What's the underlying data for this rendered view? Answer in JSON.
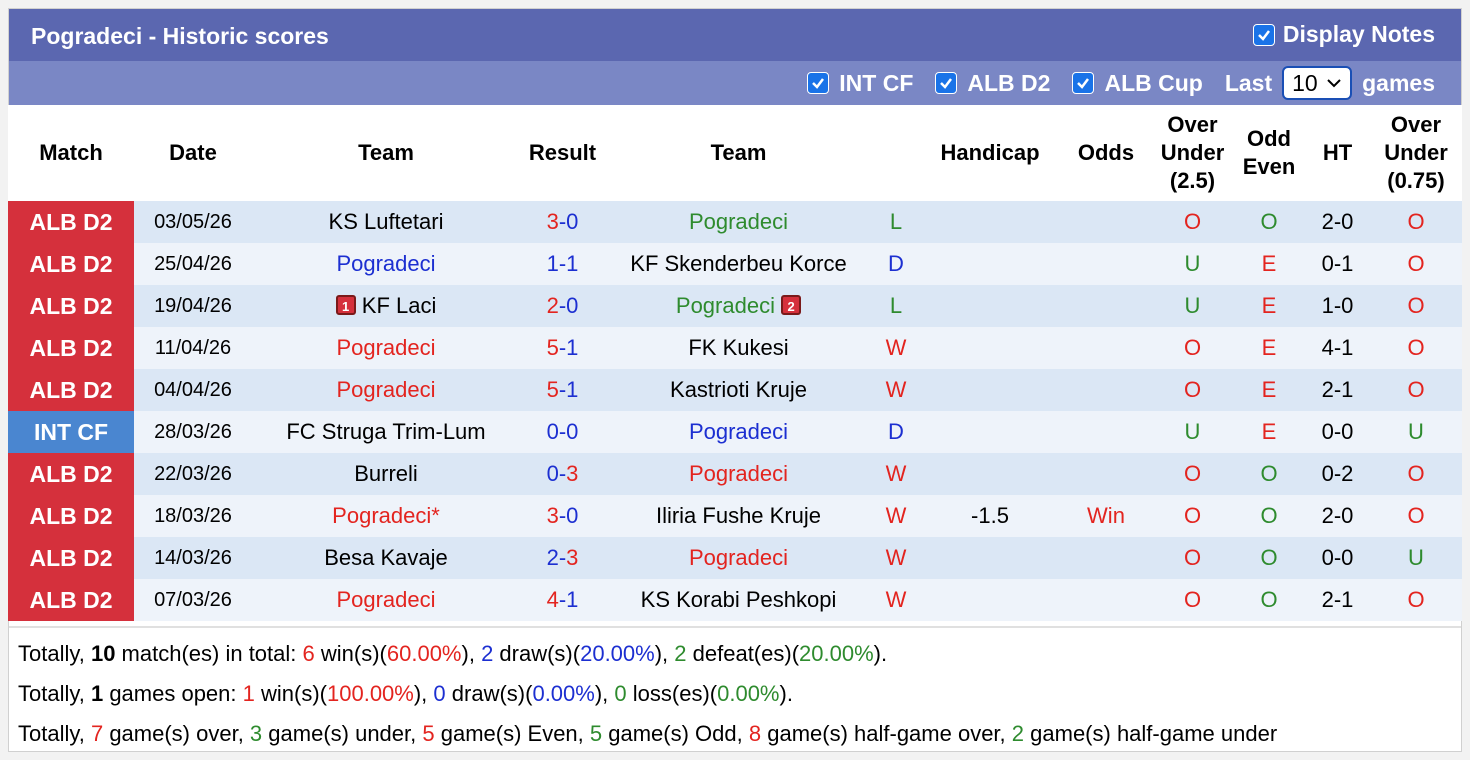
{
  "header": {
    "title": "Pogradeci - Historic scores",
    "display_notes": "Display Notes"
  },
  "filters": {
    "options": [
      "INT CF",
      "ALB D2",
      "ALB Cup"
    ],
    "last_label": "Last",
    "last_value": "10",
    "games_label": "games"
  },
  "colors": {
    "match": {
      "ALB D2": "#d5303c",
      "INT CF": "#4a86d0"
    },
    "outcome": {
      "W": "#e3241f",
      "D": "#1c2fd1",
      "L": "#2e8b2e"
    },
    "ou": {
      "O": "#e3241f",
      "U": "#2e8b2e"
    },
    "oe": {
      "O": "#2e8b2e",
      "E": "#e3241f"
    },
    "odds": {
      "Win": "#e3241f"
    },
    "text": {
      "r": "#e3241f",
      "b": "#1c2fd1",
      "g": "#2e8b2e",
      "k": "#000000"
    }
  },
  "table": {
    "columns": [
      "Match",
      "Date",
      "Team",
      "Result",
      "Team",
      null,
      "Handicap",
      "Odds",
      "Over Under (2.5)",
      "Odd Even",
      "HT",
      "Over Under (0.75)"
    ],
    "score_sep": "-",
    "rows": [
      {
        "match": "ALB D2",
        "date": "03/05/26",
        "home": "KS Luftetari",
        "score": [
          3,
          0
        ],
        "away": "Pogradeci",
        "focus": "away",
        "outcome": "L",
        "handicap": null,
        "odds": null,
        "ou": "O",
        "oe": "O",
        "ht": "2-0",
        "ou2": "O"
      },
      {
        "match": "ALB D2",
        "date": "25/04/26",
        "home": "Pogradeci",
        "score": [
          1,
          1
        ],
        "away": "KF Skenderbeu Korce",
        "focus": "home",
        "outcome": "D",
        "handicap": null,
        "odds": null,
        "ou": "U",
        "oe": "E",
        "ht": "0-1",
        "ou2": "O"
      },
      {
        "match": "ALB D2",
        "date": "19/04/26",
        "home": "KF Laci",
        "home_cards": 1,
        "score": [
          2,
          0
        ],
        "away": "Pogradeci",
        "away_cards": 2,
        "focus": "away",
        "outcome": "L",
        "handicap": null,
        "odds": null,
        "ou": "U",
        "oe": "E",
        "ht": "1-0",
        "ou2": "O"
      },
      {
        "match": "ALB D2",
        "date": "11/04/26",
        "home": "Pogradeci",
        "score": [
          5,
          1
        ],
        "away": "FK Kukesi",
        "focus": "home",
        "outcome": "W",
        "handicap": null,
        "odds": null,
        "ou": "O",
        "oe": "E",
        "ht": "4-1",
        "ou2": "O"
      },
      {
        "match": "ALB D2",
        "date": "04/04/26",
        "home": "Pogradeci",
        "score": [
          5,
          1
        ],
        "away": "Kastrioti Kruje",
        "focus": "home",
        "outcome": "W",
        "handicap": null,
        "odds": null,
        "ou": "O",
        "oe": "E",
        "ht": "2-1",
        "ou2": "O"
      },
      {
        "match": "INT CF",
        "date": "28/03/26",
        "home": "FC Struga Trim-Lum",
        "score": [
          0,
          0
        ],
        "away": "Pogradeci",
        "focus": "away",
        "outcome": "D",
        "handicap": null,
        "odds": null,
        "ou": "U",
        "oe": "E",
        "ht": "0-0",
        "ou2": "U"
      },
      {
        "match": "ALB D2",
        "date": "22/03/26",
        "home": "Burreli",
        "score": [
          0,
          3
        ],
        "away": "Pogradeci",
        "focus": "away",
        "outcome": "W",
        "handicap": null,
        "odds": null,
        "ou": "O",
        "oe": "O",
        "ht": "0-2",
        "ou2": "O"
      },
      {
        "match": "ALB D2",
        "date": "18/03/26",
        "home": "Pogradeci*",
        "score": [
          3,
          0
        ],
        "away": "Iliria Fushe Kruje",
        "focus": "home",
        "outcome": "W",
        "handicap": -1.5,
        "odds": "Win",
        "ou": "O",
        "oe": "O",
        "ht": "2-0",
        "ou2": "O"
      },
      {
        "match": "ALB D2",
        "date": "14/03/26",
        "home": "Besa Kavaje",
        "score": [
          2,
          3
        ],
        "away": "Pogradeci",
        "focus": "away",
        "outcome": "W",
        "handicap": null,
        "odds": null,
        "ou": "O",
        "oe": "O",
        "ht": "0-0",
        "ou2": "U"
      },
      {
        "match": "ALB D2",
        "date": "07/03/26",
        "home": "Pogradeci",
        "score": [
          4,
          1
        ],
        "away": "KS Korabi Peshkopi",
        "focus": "home",
        "outcome": "W",
        "handicap": null,
        "odds": null,
        "ou": "O",
        "oe": "O",
        "ht": "2-1",
        "ou2": "O"
      }
    ]
  },
  "summary": [
    [
      {
        "t": "Totally, "
      },
      {
        "t": "10",
        "c": "k"
      },
      {
        "t": " match(es) in total: "
      },
      {
        "t": "6",
        "c": "r"
      },
      {
        "t": " win(s)("
      },
      {
        "t": "60.00%",
        "c": "r"
      },
      {
        "t": "), "
      },
      {
        "t": "2",
        "c": "b"
      },
      {
        "t": " draw(s)("
      },
      {
        "t": "20.00%",
        "c": "b"
      },
      {
        "t": "), "
      },
      {
        "t": "2",
        "c": "g"
      },
      {
        "t": " defeat(es)("
      },
      {
        "t": "20.00%",
        "c": "g"
      },
      {
        "t": ")."
      }
    ],
    [
      {
        "t": "Totally, "
      },
      {
        "t": "1",
        "c": "k"
      },
      {
        "t": " games open: "
      },
      {
        "t": "1",
        "c": "r"
      },
      {
        "t": " win(s)("
      },
      {
        "t": "100.00%",
        "c": "r"
      },
      {
        "t": "), "
      },
      {
        "t": "0",
        "c": "b"
      },
      {
        "t": " draw(s)("
      },
      {
        "t": "0.00%",
        "c": "b"
      },
      {
        "t": "), "
      },
      {
        "t": "0",
        "c": "g"
      },
      {
        "t": " loss(es)("
      },
      {
        "t": "0.00%",
        "c": "g"
      },
      {
        "t": ")."
      }
    ],
    [
      {
        "t": "Totally, "
      },
      {
        "t": "7",
        "c": "r"
      },
      {
        "t": " game(s) over, "
      },
      {
        "t": "3",
        "c": "g"
      },
      {
        "t": " game(s) under, "
      },
      {
        "t": "5",
        "c": "r"
      },
      {
        "t": " game(s) Even, "
      },
      {
        "t": "5",
        "c": "g"
      },
      {
        "t": " game(s) Odd, "
      },
      {
        "t": "8",
        "c": "r"
      },
      {
        "t": " game(s) half-game over, "
      },
      {
        "t": "2",
        "c": "g"
      },
      {
        "t": " game(s) half-game under"
      }
    ]
  ]
}
